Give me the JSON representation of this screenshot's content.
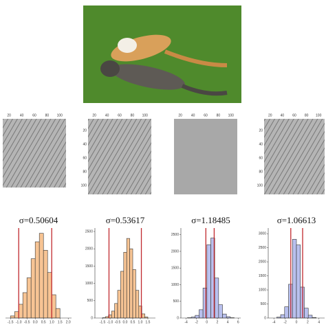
{
  "feature_maps": [
    {
      "xticks": [
        20,
        40,
        60,
        80,
        100
      ]
    },
    {
      "xticks": [
        20,
        40,
        60,
        80,
        100
      ],
      "yticks": [
        20,
        40,
        60,
        80,
        100
      ]
    },
    {
      "xticks": [
        20,
        40,
        60,
        80,
        100
      ]
    },
    {
      "xticks": [
        20,
        40,
        60,
        80,
        100
      ],
      "yticks": [
        20,
        40,
        60,
        80,
        100
      ]
    }
  ],
  "chart_data": [
    {
      "type": "histogram",
      "title": "σ=0.50604",
      "color": "#f7c494",
      "bins": [
        -1.5,
        -1.25,
        -1,
        -0.75,
        -0.5,
        -0.25,
        0,
        0.25,
        0.5,
        0.75,
        1,
        1.25,
        1.5
      ],
      "counts": [
        20,
        60,
        130,
        240,
        380,
        560,
        720,
        800,
        640,
        430,
        220,
        90
      ],
      "xlim": [
        -1.8,
        2.2
      ],
      "xticks": [
        {
          "value": -1.5,
          "label": "-1.5"
        },
        {
          "value": -1,
          "label": "-1.0"
        },
        {
          "value": -0.5,
          "label": "-0.5"
        },
        {
          "value": 0,
          "label": "0.0"
        },
        {
          "value": 0.5,
          "label": "0.5"
        },
        {
          "value": 1,
          "label": "1.0"
        },
        {
          "value": 1.5,
          "label": "1.5"
        },
        {
          "value": 2,
          "label": "2.0"
        }
      ],
      "ylim": [
        0,
        850
      ],
      "reference_lines": [
        -1.0,
        1.0
      ],
      "reference_color": "#c0282d"
    },
    {
      "type": "histogram",
      "title": "σ=0.53617",
      "color": "#f7c494",
      "bins": [
        -1.5,
        -1.3,
        -1.1,
        -0.9,
        -0.7,
        -0.5,
        -0.3,
        -0.1,
        0.1,
        0.3,
        0.5,
        0.7,
        0.9,
        1.1,
        1.3,
        1.5
      ],
      "counts": [
        10,
        40,
        90,
        200,
        420,
        800,
        1350,
        1900,
        2300,
        2000,
        1400,
        800,
        350,
        120,
        30
      ],
      "xlim": [
        -2,
        2
      ],
      "xticks": [
        {
          "value": -1.5,
          "label": "-1.5"
        },
        {
          "value": -1,
          "label": "-1.0"
        },
        {
          "value": -0.5,
          "label": "-0.5"
        },
        {
          "value": 0,
          "label": "0.0"
        },
        {
          "value": 0.5,
          "label": "0.5"
        },
        {
          "value": 1,
          "label": "1.0"
        },
        {
          "value": 1.5,
          "label": "1.5"
        }
      ],
      "ylim": [
        0,
        2600
      ],
      "yticks": [
        0,
        500,
        1000,
        1500,
        2000,
        2500
      ],
      "reference_lines": [
        -1.07,
        1.07
      ],
      "reference_color": "#c0282d"
    },
    {
      "type": "histogram",
      "title": "σ=1.18485",
      "color": "#b9c0ee",
      "bins": [
        -3.75,
        -3,
        -2.25,
        -1.5,
        -0.75,
        0,
        0.75,
        1.5,
        2.25,
        3,
        3.75,
        4.5,
        5.25
      ],
      "counts": [
        10,
        30,
        80,
        250,
        900,
        2200,
        2400,
        1200,
        400,
        120,
        40,
        10
      ],
      "xlim": [
        -5,
        6.5
      ],
      "xticks": [
        -4,
        -2,
        0,
        2,
        4,
        6
      ],
      "ylim": [
        0,
        2700
      ],
      "yticks": [
        0,
        500,
        1000,
        1500,
        2000,
        2500
      ],
      "reference_lines": [
        -0.2,
        1.4
      ],
      "reference_color": "#c0282d"
    },
    {
      "type": "histogram",
      "title": "σ=1.06613",
      "color": "#b9c0ee",
      "bins": [
        -3.5,
        -2.8,
        -2.1,
        -1.4,
        -0.7,
        0,
        0.7,
        1.4,
        2.1,
        2.8,
        3.5
      ],
      "counts": [
        30,
        120,
        400,
        1200,
        2800,
        2600,
        1100,
        350,
        100,
        20
      ],
      "xlim": [
        -5,
        5
      ],
      "xticks": [
        -4,
        -2,
        0,
        2,
        4
      ],
      "ylim": [
        0,
        3200
      ],
      "yticks": [
        0,
        500,
        1000,
        1500,
        2000,
        2500,
        3000
      ],
      "reference_lines": [
        -1.0,
        1.1
      ],
      "reference_color": "#c0282d"
    }
  ]
}
